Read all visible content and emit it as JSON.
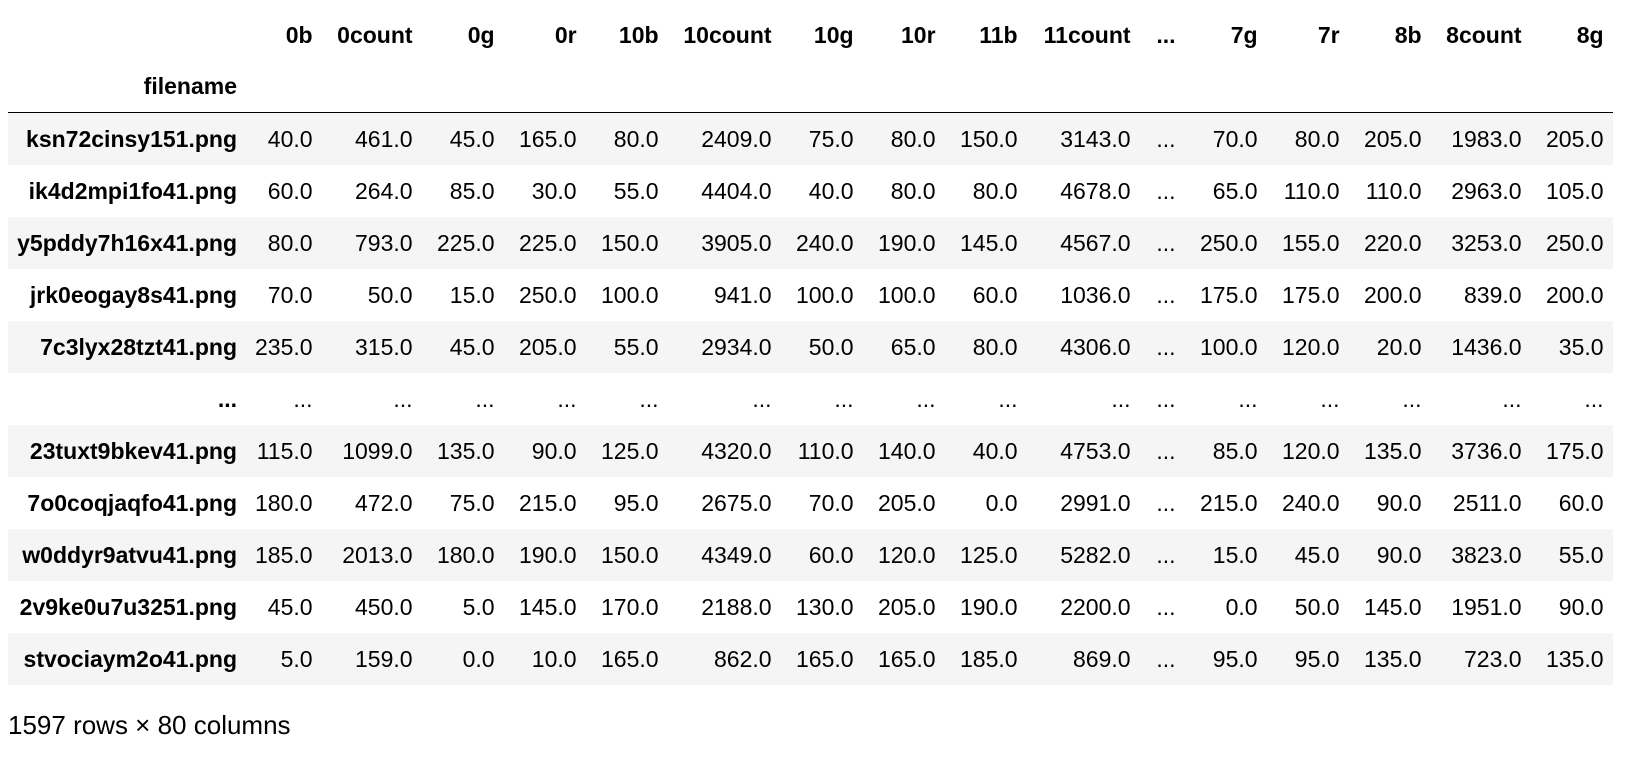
{
  "dataframe": {
    "columns": [
      "0b",
      "0count",
      "0g",
      "0r",
      "10b",
      "10count",
      "10g",
      "10r",
      "11b",
      "11count",
      "...",
      "7g",
      "7r",
      "8b",
      "8count",
      "8g"
    ],
    "index_name": "filename",
    "rows": [
      {
        "index": "ksn72cinsy151.png",
        "cells": [
          "40.0",
          "461.0",
          "45.0",
          "165.0",
          "80.0",
          "2409.0",
          "75.0",
          "80.0",
          "150.0",
          "3143.0",
          "...",
          "70.0",
          "80.0",
          "205.0",
          "1983.0",
          "205.0"
        ]
      },
      {
        "index": "ik4d2mpi1fo41.png",
        "cells": [
          "60.0",
          "264.0",
          "85.0",
          "30.0",
          "55.0",
          "4404.0",
          "40.0",
          "80.0",
          "80.0",
          "4678.0",
          "...",
          "65.0",
          "110.0",
          "110.0",
          "2963.0",
          "105.0"
        ]
      },
      {
        "index": "y5pddy7h16x41.png",
        "cells": [
          "80.0",
          "793.0",
          "225.0",
          "225.0",
          "150.0",
          "3905.0",
          "240.0",
          "190.0",
          "145.0",
          "4567.0",
          "...",
          "250.0",
          "155.0",
          "220.0",
          "3253.0",
          "250.0"
        ]
      },
      {
        "index": "jrk0eogay8s41.png",
        "cells": [
          "70.0",
          "50.0",
          "15.0",
          "250.0",
          "100.0",
          "941.0",
          "100.0",
          "100.0",
          "60.0",
          "1036.0",
          "...",
          "175.0",
          "175.0",
          "200.0",
          "839.0",
          "200.0"
        ]
      },
      {
        "index": "7c3lyx28tzt41.png",
        "cells": [
          "235.0",
          "315.0",
          "45.0",
          "205.0",
          "55.0",
          "2934.0",
          "50.0",
          "65.0",
          "80.0",
          "4306.0",
          "...",
          "100.0",
          "120.0",
          "20.0",
          "1436.0",
          "35.0"
        ]
      },
      {
        "index": "...",
        "cells": [
          "...",
          "...",
          "...",
          "...",
          "...",
          "...",
          "...",
          "...",
          "...",
          "...",
          "...",
          "...",
          "...",
          "...",
          "...",
          "..."
        ]
      },
      {
        "index": "23tuxt9bkev41.png",
        "cells": [
          "115.0",
          "1099.0",
          "135.0",
          "90.0",
          "125.0",
          "4320.0",
          "110.0",
          "140.0",
          "40.0",
          "4753.0",
          "...",
          "85.0",
          "120.0",
          "135.0",
          "3736.0",
          "175.0"
        ]
      },
      {
        "index": "7o0coqjaqfo41.png",
        "cells": [
          "180.0",
          "472.0",
          "75.0",
          "215.0",
          "95.0",
          "2675.0",
          "70.0",
          "205.0",
          "0.0",
          "2991.0",
          "...",
          "215.0",
          "240.0",
          "90.0",
          "2511.0",
          "60.0"
        ]
      },
      {
        "index": "w0ddyr9atvu41.png",
        "cells": [
          "185.0",
          "2013.0",
          "180.0",
          "190.0",
          "150.0",
          "4349.0",
          "60.0",
          "120.0",
          "125.0",
          "5282.0",
          "...",
          "15.0",
          "45.0",
          "90.0",
          "3823.0",
          "55.0"
        ]
      },
      {
        "index": "2v9ke0u7u3251.png",
        "cells": [
          "45.0",
          "450.0",
          "5.0",
          "145.0",
          "170.0",
          "2188.0",
          "130.0",
          "205.0",
          "190.0",
          "2200.0",
          "...",
          "0.0",
          "50.0",
          "145.0",
          "1951.0",
          "90.0"
        ]
      },
      {
        "index": "stvociaym2o41.png",
        "cells": [
          "5.0",
          "159.0",
          "0.0",
          "10.0",
          "165.0",
          "862.0",
          "165.0",
          "165.0",
          "185.0",
          "869.0",
          "...",
          "95.0",
          "95.0",
          "135.0",
          "723.0",
          "135.0"
        ]
      }
    ]
  },
  "footer": {
    "shape_text": "1597 rows × 80 columns"
  }
}
